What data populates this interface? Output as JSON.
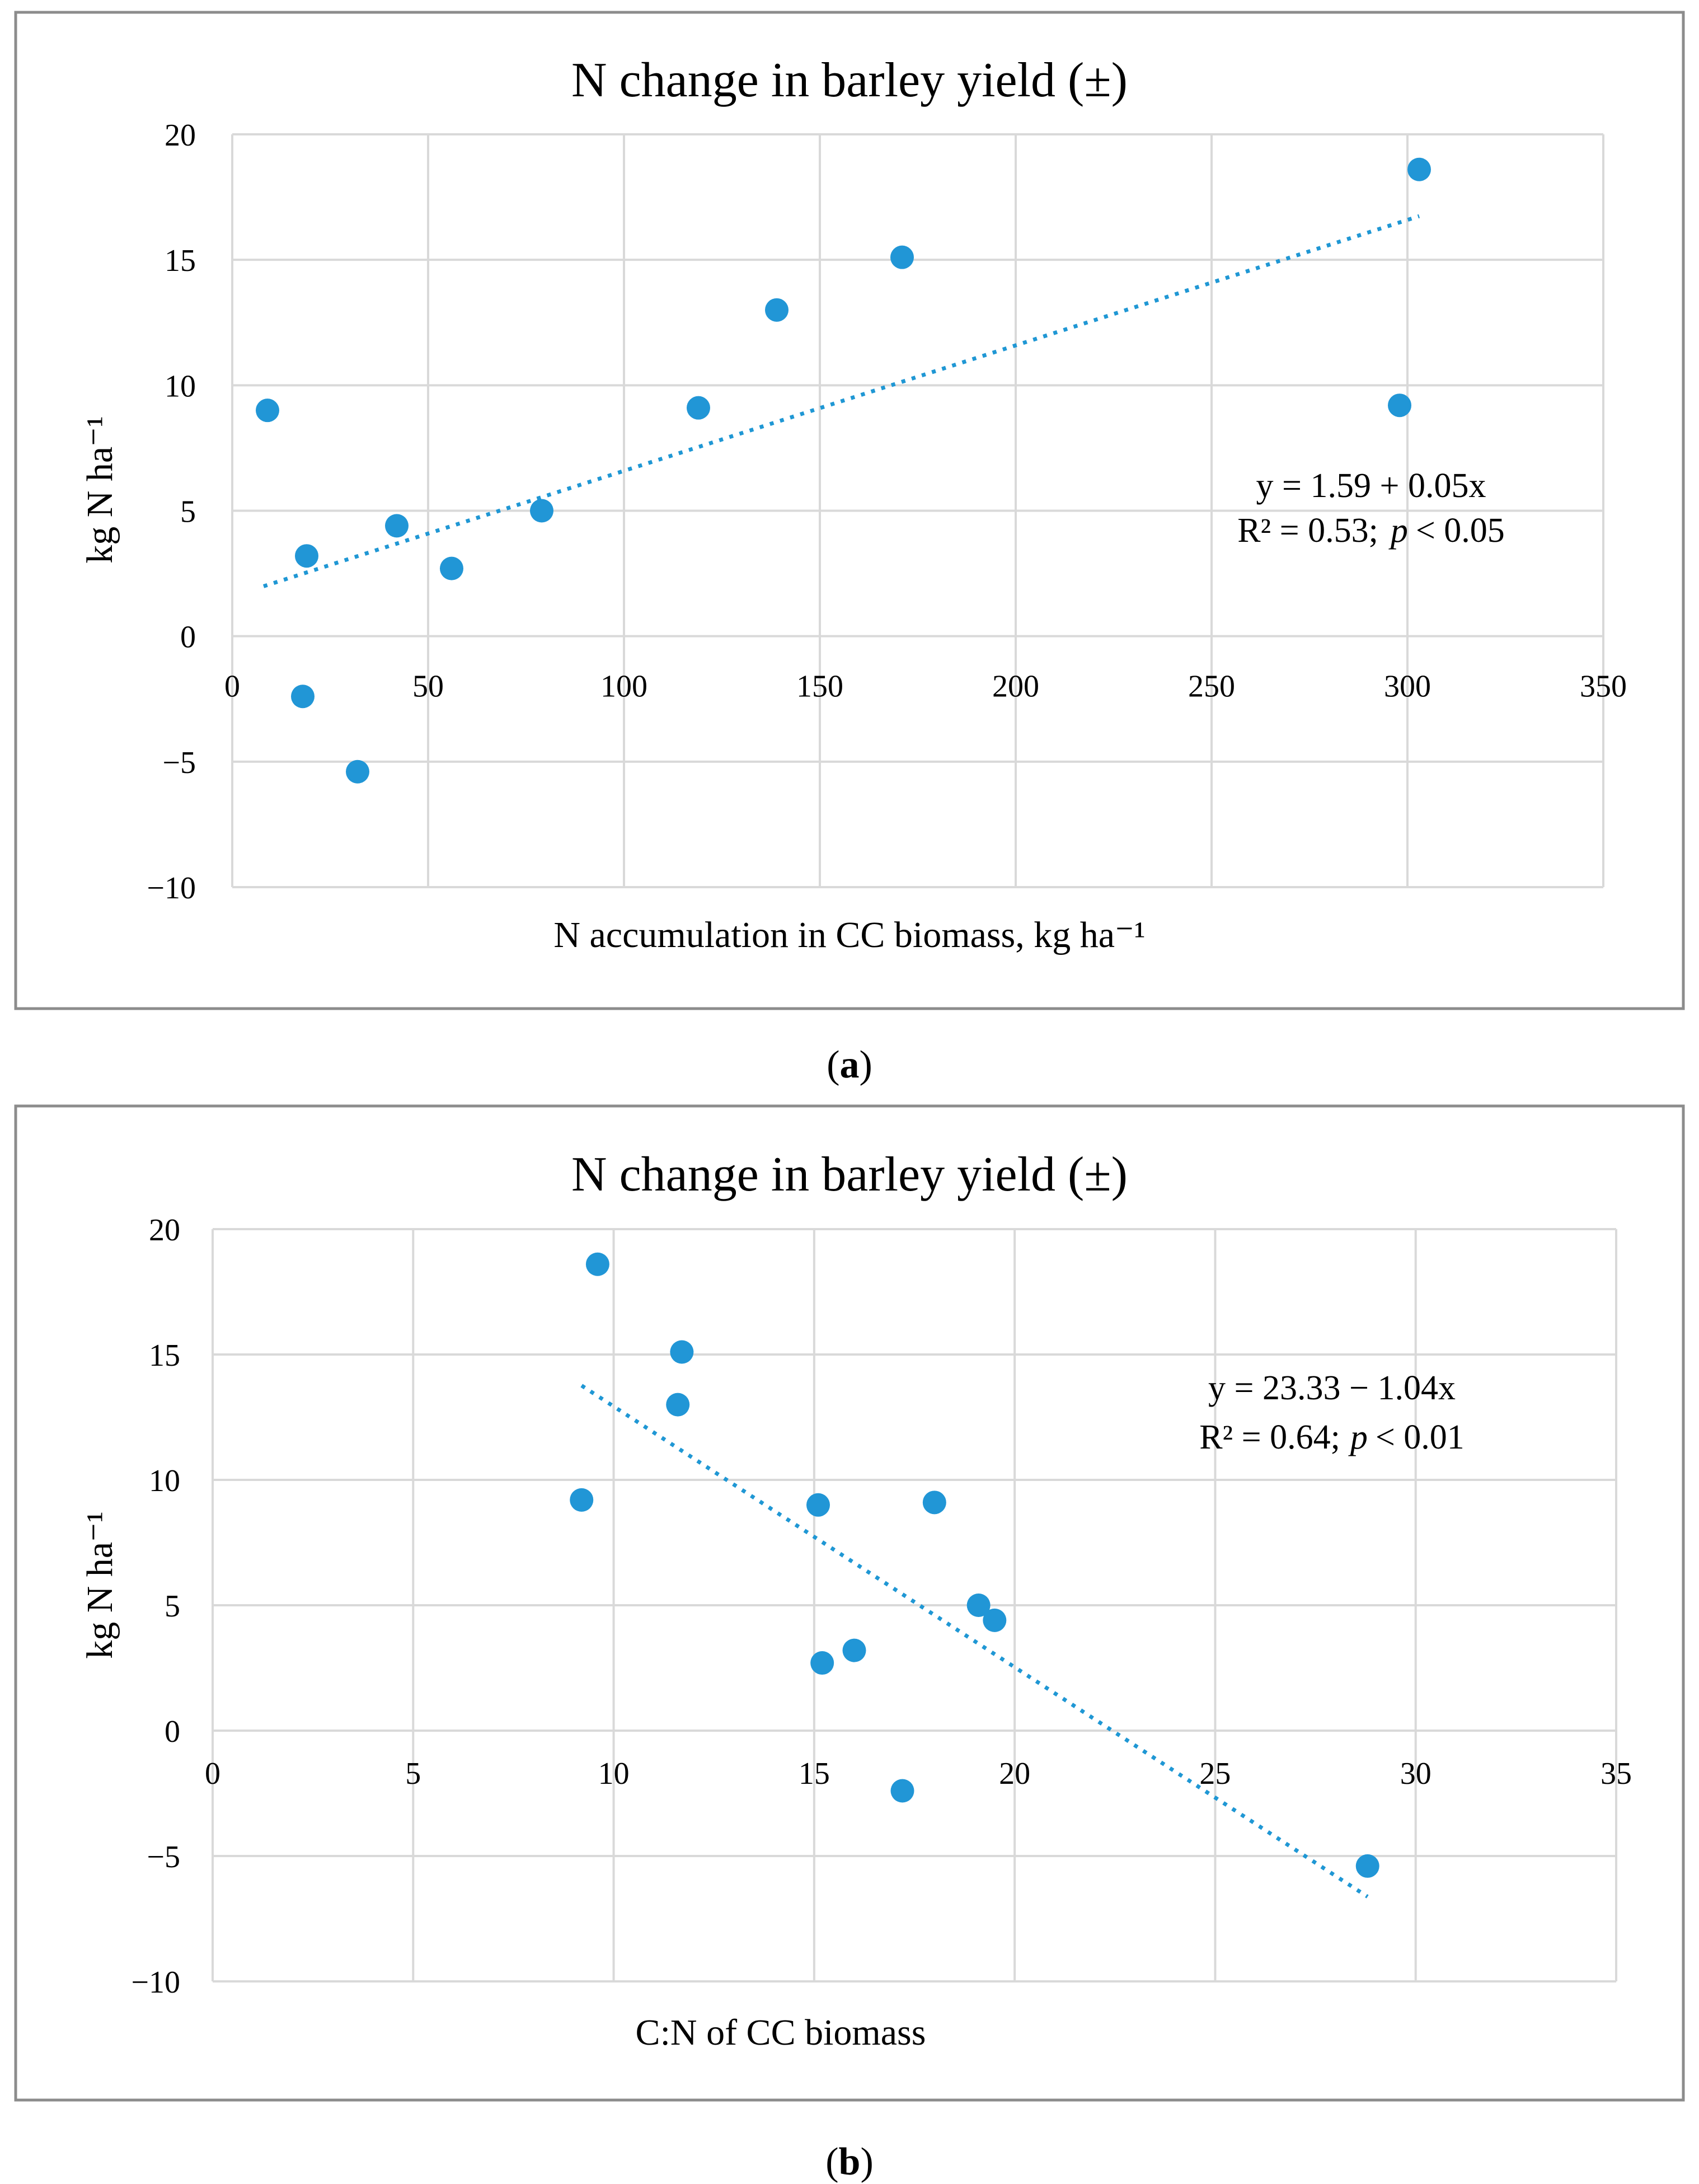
{
  "chart_data": [
    {
      "type": "scatter",
      "title": "N change in  barley yield (±)",
      "xlabel": "N accumulation in CC biomass, kg ha⁻¹",
      "ylabel": "kg N ha⁻¹",
      "xlim": [
        0,
        350
      ],
      "ylim": [
        -10,
        20
      ],
      "xticks": [
        "0",
        "50",
        "100",
        "150",
        "200",
        "250",
        "300",
        "350"
      ],
      "yticks": [
        "20",
        "15",
        "10",
        "5",
        "0",
        "−5",
        "−10"
      ],
      "xtick_values": [
        0,
        50,
        100,
        150,
        200,
        250,
        300,
        350
      ],
      "ytick_values": [
        20,
        15,
        10,
        5,
        0,
        -5,
        -10
      ],
      "grid": true,
      "points": [
        {
          "x": 9,
          "y": 9.0
        },
        {
          "x": 18,
          "y": -2.4
        },
        {
          "x": 19,
          "y": 3.2
        },
        {
          "x": 32,
          "y": -5.4
        },
        {
          "x": 42,
          "y": 4.4
        },
        {
          "x": 56,
          "y": 2.7
        },
        {
          "x": 79,
          "y": 5.0
        },
        {
          "x": 119,
          "y": 9.1
        },
        {
          "x": 139,
          "y": 13.0
        },
        {
          "x": 171,
          "y": 15.1
        },
        {
          "x": 298,
          "y": 9.2
        },
        {
          "x": 303,
          "y": 18.6
        }
      ],
      "trendline": {
        "intercept": 1.59,
        "slope": 0.05,
        "x_range": [
          8,
          303
        ]
      },
      "equation": "y = 1.59 + 0.05x",
      "r2_prefix": "R² = 0.53;",
      "p_label": "p",
      "p_value": "< 0.05",
      "caption_open": "(",
      "caption_letter": "a",
      "caption_close": ")"
    },
    {
      "type": "scatter",
      "title": "N change in  barley yield (±)",
      "xlabel": "C:N of CC biomass",
      "ylabel": "kg N ha⁻¹",
      "xlim": [
        0,
        35
      ],
      "ylim": [
        -10,
        20
      ],
      "xticks": [
        "0",
        "5",
        "10",
        "15",
        "20",
        "25",
        "30",
        "35"
      ],
      "yticks": [
        "20",
        "15",
        "10",
        "5",
        "0",
        "−5",
        "−10"
      ],
      "xtick_values": [
        0,
        5,
        10,
        15,
        20,
        25,
        30,
        35
      ],
      "ytick_values": [
        20,
        15,
        10,
        5,
        0,
        -5,
        -10
      ],
      "grid": true,
      "points": [
        {
          "x": 9.2,
          "y": 9.2
        },
        {
          "x": 9.6,
          "y": 18.6
        },
        {
          "x": 11.6,
          "y": 13.0
        },
        {
          "x": 11.7,
          "y": 15.1
        },
        {
          "x": 15.1,
          "y": 9.0
        },
        {
          "x": 15.2,
          "y": 2.7
        },
        {
          "x": 16.0,
          "y": 3.2
        },
        {
          "x": 17.2,
          "y": -2.4
        },
        {
          "x": 18.0,
          "y": 9.1
        },
        {
          "x": 19.1,
          "y": 5.0
        },
        {
          "x": 19.5,
          "y": 4.4
        },
        {
          "x": 28.8,
          "y": -5.4
        }
      ],
      "trendline": {
        "intercept": 23.33,
        "slope": -1.04,
        "x_range": [
          9.2,
          28.8
        ]
      },
      "equation": "y = 23.33 − 1.04x",
      "r2_prefix": "R² = 0.64;",
      "p_label": "p",
      "p_value": "< 0.01",
      "caption_open": "(",
      "caption_letter": "b",
      "caption_close": ")"
    }
  ]
}
